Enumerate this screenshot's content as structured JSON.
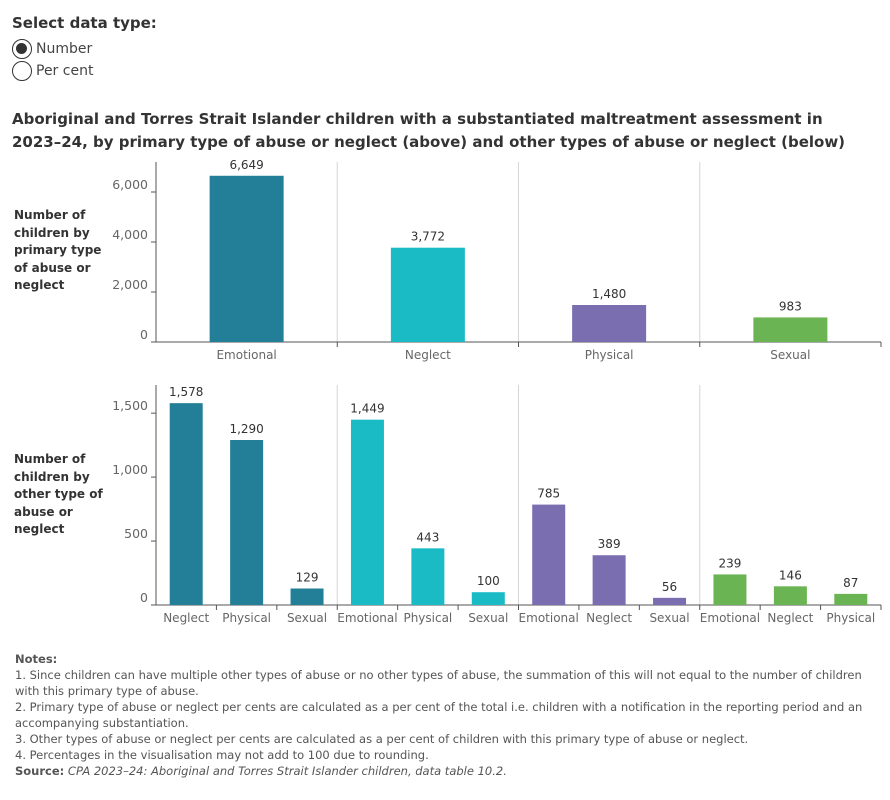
{
  "selector": {
    "title": "Select data type:",
    "options": [
      {
        "label": "Number",
        "checked": true
      },
      {
        "label": "Per cent",
        "checked": false
      }
    ]
  },
  "title": "Aboriginal and Torres Strait Islander children with a substantiated maltreatment assessment in 2023–24, by primary type of abuse or neglect (above) and other types of abuse or neglect (below)",
  "colors": {
    "Emotional": "#237e97",
    "Neglect": "#1bbbc6",
    "Physical": "#7a6db0",
    "Sexual": "#6ab453"
  },
  "chart_data": [
    {
      "type": "bar",
      "ylabel": "Number of children by primary type of abuse or neglect",
      "categories": [
        "Emotional",
        "Neglect",
        "Physical",
        "Sexual"
      ],
      "values": [
        6649,
        3772,
        1480,
        983
      ],
      "value_labels": [
        "6,649",
        "3,772",
        "1,480",
        "983"
      ],
      "ylim": [
        0,
        7200
      ],
      "yticks": [
        0,
        2000,
        4000,
        6000
      ],
      "ytick_labels": [
        "0",
        "2,000",
        "4,000",
        "6,000"
      ]
    },
    {
      "type": "bar",
      "ylabel": "Number of children by other type of abuse or neglect",
      "groups": [
        {
          "primary": "Emotional",
          "categories": [
            "Neglect",
            "Physical",
            "Sexual"
          ],
          "values": [
            1578,
            1290,
            129
          ],
          "value_labels": [
            "1,578",
            "1,290",
            "129"
          ]
        },
        {
          "primary": "Neglect",
          "categories": [
            "Emotional",
            "Physical",
            "Sexual"
          ],
          "values": [
            1449,
            443,
            100
          ],
          "value_labels": [
            "1,449",
            "443",
            "100"
          ]
        },
        {
          "primary": "Physical",
          "categories": [
            "Emotional",
            "Neglect",
            "Sexual"
          ],
          "values": [
            785,
            389,
            56
          ],
          "value_labels": [
            "785",
            "389",
            "56"
          ]
        },
        {
          "primary": "Sexual",
          "categories": [
            "Emotional",
            "Neglect",
            "Physical"
          ],
          "values": [
            239,
            146,
            87
          ],
          "value_labels": [
            "239",
            "146",
            "87"
          ]
        }
      ],
      "ylim": [
        0,
        1720
      ],
      "yticks": [
        0,
        500,
        1000,
        1500
      ],
      "ytick_labels": [
        "0",
        "500",
        "1,000",
        "1,500"
      ]
    }
  ],
  "notes": {
    "title": "Notes:",
    "items": [
      "1. Since children can have multiple other types of abuse or no other types of abuse, the summation of this will not equal to the number of children with this primary type of abuse.",
      "2. Primary type of abuse or neglect per cents are calculated as a per cent of the total i.e. children with a notification in the reporting period and an accompanying substantiation.",
      "3. Other types of abuse or neglect per cents are calculated as a per cent of children with this primary type of abuse or neglect.",
      "4. Percentages in the visualisation may not add to 100 due to rounding."
    ],
    "source_label": "Source:",
    "source_text": "CPA 2023–24: Aboriginal and Torres Strait Islander children, data table 10.2."
  }
}
